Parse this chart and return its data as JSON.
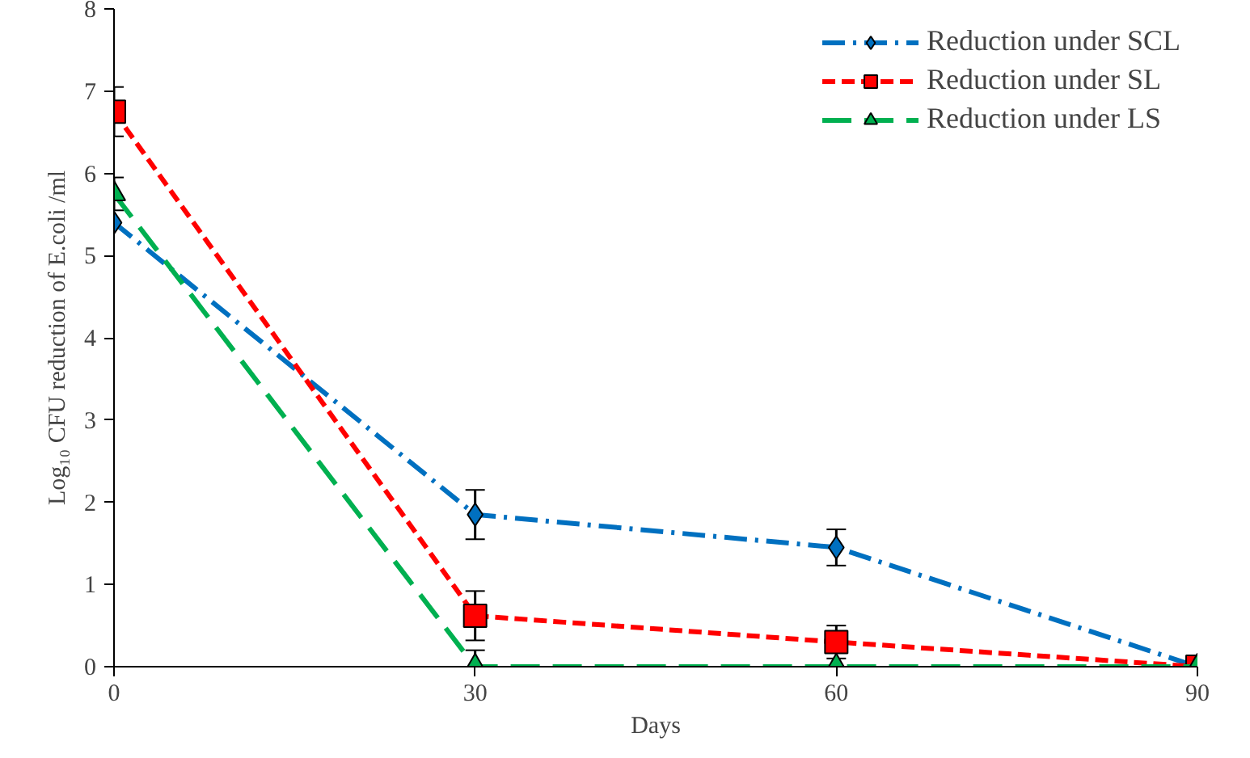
{
  "chart_data": {
    "type": "line",
    "xlabel": "Days",
    "ylabel": "Log₁₀ CFU reduction of E.coli /ml",
    "x": [
      0,
      30,
      60,
      90
    ],
    "xlim": [
      0,
      90
    ],
    "xticks": [
      0,
      30,
      60,
      90
    ],
    "ylim": [
      0,
      8
    ],
    "yticks": [
      0,
      1,
      2,
      3,
      4,
      5,
      6,
      7,
      8
    ],
    "grid": false,
    "legend": "top right",
    "series": [
      {
        "name": "Reduction under SCL",
        "color": "#0070c0",
        "values": [
          5.4,
          1.85,
          1.45,
          0
        ],
        "errors": [
          null,
          0.3,
          0.22,
          null
        ],
        "marker": "diamond",
        "line_style": "dashdot"
      },
      {
        "name": "Reduction under SL",
        "color": "#ff0000",
        "values": [
          6.75,
          0.62,
          0.3,
          0
        ],
        "errors": [
          0.3,
          0.3,
          0.2,
          null
        ],
        "marker": "square",
        "line_style": "dashed"
      },
      {
        "name": "Reduction under LS",
        "color": "#00b050",
        "values": [
          5.75,
          0,
          0,
          0
        ],
        "errors": [
          0.2,
          0.2,
          null,
          null
        ],
        "marker": "triangle",
        "line_style": "longdash"
      }
    ]
  }
}
